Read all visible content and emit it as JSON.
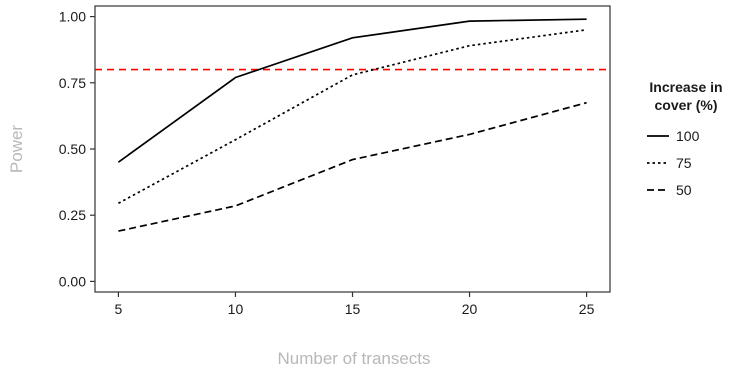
{
  "chart_data": {
    "type": "line",
    "title": "",
    "xlabel": "Number of transects",
    "ylabel": "Power",
    "x": [
      5,
      10,
      15,
      20,
      25
    ],
    "xlim": [
      4,
      26
    ],
    "ylim": [
      -0.04,
      1.04
    ],
    "x_ticks": [
      "5",
      "10",
      "15",
      "20",
      "25"
    ],
    "y_ticks": [
      "0.00",
      "0.25",
      "0.50",
      "0.75",
      "1.00"
    ],
    "grid": false,
    "legend_position": "right",
    "legend_title_lines": [
      "Increase in",
      "cover (%)"
    ],
    "series": [
      {
        "name": "100",
        "values": [
          0.45,
          0.77,
          0.92,
          0.983,
          0.99
        ],
        "dash": "solid"
      },
      {
        "name": "75",
        "values": [
          0.295,
          0.535,
          0.78,
          0.89,
          0.95
        ],
        "dash": "dotted"
      },
      {
        "name": "50",
        "values": [
          0.19,
          0.285,
          0.46,
          0.555,
          0.675
        ],
        "dash": "dashed"
      }
    ],
    "reference_line": {
      "y": 0.8,
      "color": "#ff0000"
    },
    "line_color": "#000000"
  }
}
